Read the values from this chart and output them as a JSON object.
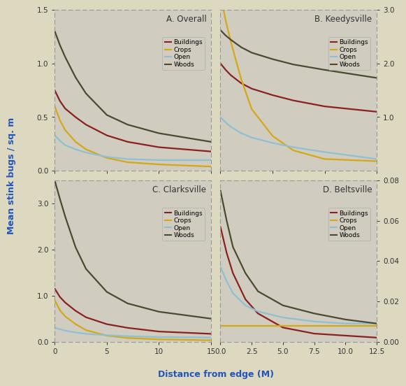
{
  "fig_width": 5.62,
  "fig_height": 5.52,
  "background_color": "#ddd8c0",
  "panel_bg_color": "#d0ccc0",
  "title_text_color": "#333333",
  "axis_label_color": "#2255bb",
  "tick_label_color": "#333333",
  "line_colors": {
    "Buildings": "#8b2020",
    "Crops": "#d4a817",
    "Open": "#90c0d0",
    "Woods": "#4a4a30"
  },
  "line_width": 1.6,
  "panels": [
    {
      "title": "A. Overall",
      "xlim": [
        0,
        15
      ],
      "ylim": [
        0.0,
        1.5
      ],
      "yticks": [
        0.0,
        0.5,
        1.0,
        1.5
      ],
      "ytick_labels": [
        "0.0",
        "0.5",
        "1.0",
        "1.5"
      ],
      "xticks": [
        0,
        5,
        10,
        15
      ],
      "xtick_labels": [
        "0",
        "5",
        "10",
        "15"
      ],
      "x": [
        0,
        0.5,
        1,
        2,
        3,
        5,
        7,
        10,
        15
      ],
      "Buildings": [
        0.75,
        0.65,
        0.58,
        0.5,
        0.43,
        0.33,
        0.27,
        0.22,
        0.18
      ],
      "Crops": [
        0.6,
        0.47,
        0.38,
        0.27,
        0.2,
        0.12,
        0.08,
        0.06,
        0.04
      ],
      "Open": [
        0.33,
        0.28,
        0.24,
        0.2,
        0.17,
        0.13,
        0.11,
        0.1,
        0.1
      ],
      "Woods": [
        1.3,
        1.17,
        1.06,
        0.87,
        0.72,
        0.52,
        0.43,
        0.35,
        0.27
      ]
    },
    {
      "title": "B. Keedysville",
      "xlim": [
        0,
        15
      ],
      "ylim": [
        0.0,
        3.0
      ],
      "yticks": [
        1.0,
        2.0,
        3.0
      ],
      "ytick_labels": [
        "1.0",
        "2.0",
        "3.0"
      ],
      "xticks": [
        0,
        5,
        10,
        15
      ],
      "xtick_labels": [
        "0",
        "5",
        "10",
        "15"
      ],
      "x": [
        0,
        0.5,
        1,
        2,
        3,
        5,
        7,
        10,
        15
      ],
      "Buildings": [
        2.0,
        1.88,
        1.78,
        1.63,
        1.53,
        1.41,
        1.31,
        1.2,
        1.1
      ],
      "Crops": [
        3.3,
        2.8,
        2.4,
        1.7,
        1.15,
        0.65,
        0.38,
        0.22,
        0.18
      ],
      "Open": [
        1.0,
        0.9,
        0.82,
        0.7,
        0.62,
        0.52,
        0.44,
        0.35,
        0.22
      ],
      "Woods": [
        2.62,
        2.52,
        2.44,
        2.3,
        2.2,
        2.08,
        1.98,
        1.88,
        1.73
      ]
    },
    {
      "title": "C. Clarksville",
      "xlim": [
        0,
        15
      ],
      "ylim": [
        0.0,
        3.5
      ],
      "yticks": [
        0.0,
        1.0,
        2.0,
        3.0
      ],
      "ytick_labels": [
        "0.0",
        "1.0",
        "2.0",
        "3.0"
      ],
      "xticks": [
        0,
        5,
        10,
        15
      ],
      "xtick_labels": [
        "0",
        "5",
        "10",
        "15"
      ],
      "x": [
        0,
        0.5,
        1,
        2,
        3,
        5,
        7,
        10,
        15
      ],
      "Buildings": [
        1.15,
        0.97,
        0.85,
        0.67,
        0.53,
        0.38,
        0.3,
        0.22,
        0.17
      ],
      "Crops": [
        0.9,
        0.68,
        0.55,
        0.38,
        0.25,
        0.13,
        0.08,
        0.05,
        0.03
      ],
      "Open": [
        0.3,
        0.27,
        0.24,
        0.2,
        0.17,
        0.14,
        0.12,
        0.1,
        0.09
      ],
      "Woods": [
        3.5,
        3.1,
        2.72,
        2.05,
        1.58,
        1.08,
        0.83,
        0.65,
        0.5
      ]
    },
    {
      "title": "D. Beltsville",
      "xlim": [
        0,
        12.5
      ],
      "ylim": [
        0.0,
        0.08
      ],
      "yticks": [
        0.0,
        0.02,
        0.04,
        0.06,
        0.08
      ],
      "ytick_labels": [
        "0.00",
        "0.02",
        "0.04",
        "0.06",
        "0.08"
      ],
      "xticks": [
        0.0,
        2.5,
        5.0,
        7.5,
        10.0,
        12.5
      ],
      "xtick_labels": [
        "0.0",
        "2.5",
        "5.0",
        "7.5",
        "10.0",
        "12.5"
      ],
      "x": [
        0,
        0.5,
        1,
        2,
        3,
        5,
        7.5,
        10,
        12.5
      ],
      "Buildings": [
        0.057,
        0.044,
        0.034,
        0.021,
        0.014,
        0.007,
        0.004,
        0.003,
        0.002
      ],
      "Crops": [
        0.008,
        0.008,
        0.008,
        0.008,
        0.008,
        0.008,
        0.008,
        0.008,
        0.008
      ],
      "Open": [
        0.037,
        0.03,
        0.024,
        0.018,
        0.015,
        0.012,
        0.01,
        0.009,
        0.009
      ],
      "Woods": [
        0.075,
        0.06,
        0.047,
        0.034,
        0.025,
        0.018,
        0.014,
        0.011,
        0.009
      ]
    }
  ],
  "ylabel": "Mean stink bugs / sq. m",
  "xlabel": "Distance from edge (M)",
  "legend_labels": [
    "Buildings",
    "Crops",
    "Open",
    "Woods"
  ]
}
